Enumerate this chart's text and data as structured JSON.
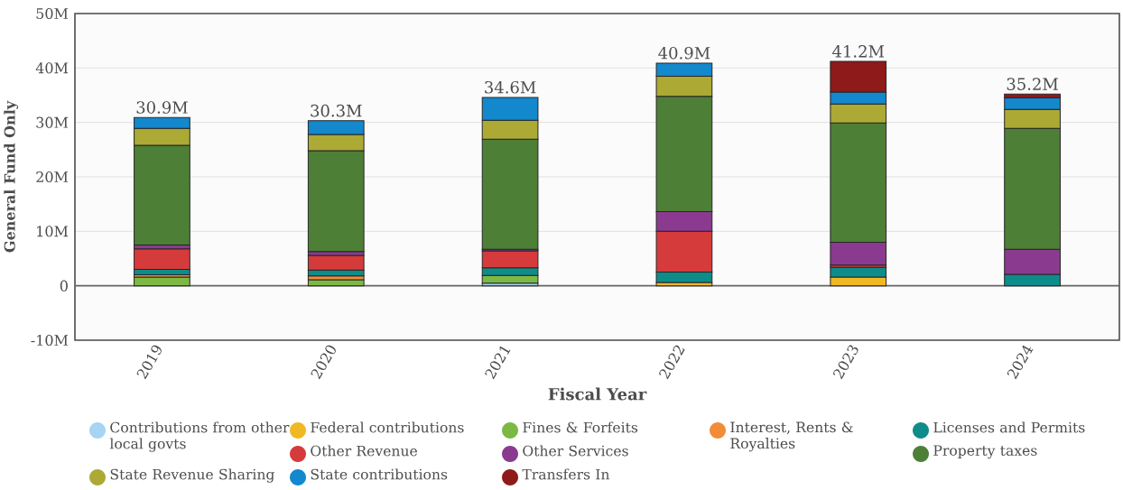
{
  "chart_data": {
    "type": "bar",
    "stacked": true,
    "xlabel": "Fiscal Year",
    "ylabel": "General Fund Only",
    "categories": [
      "2019",
      "2020",
      "2021",
      "2022",
      "2023",
      "2024"
    ],
    "ylim": [
      -10,
      50
    ],
    "yticks": [
      {
        "value": -10,
        "label": "-10M"
      },
      0,
      {
        "value": 10,
        "label": "10M"
      },
      {
        "value": 20,
        "label": "20M"
      },
      {
        "value": 30,
        "label": "30M"
      },
      {
        "value": 40,
        "label": "40M"
      },
      {
        "value": 50,
        "label": "50M"
      }
    ],
    "grid": "y",
    "legend": "bottom",
    "totals": [
      "30.9M",
      "30.3M",
      "34.6M",
      "40.9M",
      "41.2M",
      "35.2M"
    ],
    "series": [
      {
        "name": "Contributions from other local govts",
        "color": "#a6d4f2",
        "values": [
          null,
          null,
          0.5,
          null,
          null,
          null
        ]
      },
      {
        "name": "Federal contributions",
        "color": "#f0b823",
        "values": [
          null,
          null,
          null,
          0.6,
          1.6,
          null
        ]
      },
      {
        "name": "Fines & Forfeits",
        "color": "#7cb944",
        "values": [
          1.6,
          1.1,
          1.4,
          null,
          null,
          null
        ]
      },
      {
        "name": "Interest, Rents & Royalties",
        "color": "#f28c38",
        "values": [
          0.4,
          0.7,
          null,
          null,
          null,
          null
        ]
      },
      {
        "name": "Licenses and Permits",
        "color": "#0e8c8a",
        "values": [
          1.0,
          1.1,
          1.4,
          1.9,
          1.8,
          2.1
        ]
      },
      {
        "name": "Other Revenue",
        "color": "#d63b3b",
        "values": [
          3.8,
          2.7,
          3.1,
          7.5,
          0.4,
          null
        ]
      },
      {
        "name": "Other Services",
        "color": "#8a3b8f",
        "values": [
          0.7,
          0.7,
          0.3,
          3.6,
          4.2,
          4.6
        ]
      },
      {
        "name": "Property taxes",
        "color": "#4e7f37",
        "values": [
          18.3,
          18.5,
          20.2,
          21.2,
          21.9,
          22.2
        ]
      },
      {
        "name": "State Revenue Sharing",
        "color": "#aca935",
        "values": [
          3.1,
          3.0,
          3.5,
          3.7,
          3.5,
          3.5
        ]
      },
      {
        "name": "State contributions",
        "color": "#1388cc",
        "values": [
          2.0,
          2.5,
          4.2,
          2.4,
          2.2,
          2.1
        ]
      },
      {
        "name": "Transfers In",
        "color": "#8e1a1a",
        "values": [
          null,
          null,
          null,
          null,
          5.6,
          0.7
        ]
      }
    ]
  }
}
